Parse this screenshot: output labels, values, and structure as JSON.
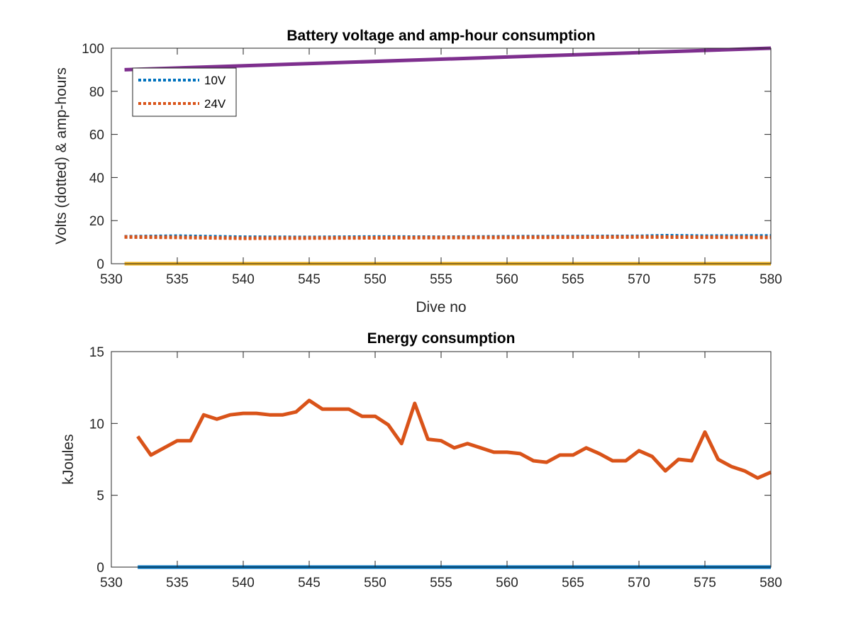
{
  "chart_data": [
    {
      "type": "line",
      "title": "Battery voltage and amp-hour consumption",
      "xlabel": "Dive no",
      "ylabel": "Volts (dotted) & amp-hours",
      "xlim": [
        530,
        580
      ],
      "ylim": [
        0,
        100
      ],
      "xticks": [
        530,
        535,
        540,
        545,
        550,
        555,
        560,
        565,
        570,
        575,
        580
      ],
      "yticks": [
        0,
        20,
        40,
        60,
        80,
        100
      ],
      "grid": false,
      "legend": {
        "placement": "top-left",
        "entries": [
          "10V",
          "24V"
        ]
      },
      "series": [
        {
          "name": "10V",
          "style": "dotted",
          "color": "#0072BD",
          "x": [
            531,
            535,
            540,
            545,
            550,
            555,
            560,
            565,
            570,
            572,
            575,
            580
          ],
          "y": [
            12.5,
            12.8,
            12.3,
            12.2,
            12.4,
            12.3,
            12.5,
            12.6,
            12.7,
            13.0,
            12.8,
            12.9
          ]
        },
        {
          "name": "24V",
          "style": "dotted",
          "color": "#D95319",
          "x": [
            531,
            535,
            540,
            545,
            550,
            555,
            560,
            565,
            570,
            575,
            580
          ],
          "y": [
            12.4,
            12.2,
            11.8,
            11.9,
            12.0,
            12.1,
            12.2,
            12.3,
            12.4,
            12.3,
            12.2
          ]
        },
        {
          "style": "solid",
          "color": "#EDB120",
          "x": [
            531,
            580
          ],
          "y": [
            0,
            0
          ]
        },
        {
          "style": "solid",
          "color": "#7E2F8E",
          "x": [
            531,
            580
          ],
          "y": [
            90,
            100
          ]
        }
      ]
    },
    {
      "type": "line",
      "title": "Energy consumption",
      "xlabel": "",
      "ylabel": "kJoules",
      "xlim": [
        530,
        580
      ],
      "ylim": [
        0,
        15
      ],
      "xticks": [
        530,
        535,
        540,
        545,
        550,
        555,
        560,
        565,
        570,
        575,
        580
      ],
      "yticks": [
        0,
        5,
        10,
        15
      ],
      "grid": false,
      "series": [
        {
          "style": "solid",
          "color": "#D95319",
          "x": [
            532,
            533,
            534,
            535,
            536,
            537,
            538,
            539,
            540,
            541,
            542,
            543,
            544,
            545,
            546,
            547,
            548,
            549,
            550,
            551,
            552,
            553,
            554,
            555,
            556,
            557,
            558,
            559,
            560,
            561,
            562,
            563,
            564,
            565,
            566,
            567,
            568,
            569,
            570,
            571,
            572,
            573,
            574,
            575,
            576,
            577,
            578,
            579,
            580
          ],
          "y": [
            9.1,
            7.8,
            8.3,
            8.8,
            8.8,
            10.6,
            10.3,
            10.6,
            10.7,
            10.7,
            10.6,
            10.6,
            10.8,
            11.6,
            11.0,
            11.0,
            11.0,
            10.5,
            10.5,
            9.9,
            8.6,
            11.4,
            8.9,
            8.8,
            8.3,
            8.6,
            8.3,
            8.0,
            8.0,
            7.9,
            7.4,
            7.3,
            7.8,
            7.8,
            8.3,
            7.9,
            7.4,
            7.4,
            8.1,
            7.7,
            6.7,
            7.5,
            7.4,
            9.4,
            7.5,
            7.0,
            6.7,
            6.2,
            6.6
          ]
        },
        {
          "style": "solid",
          "color": "#0072BD",
          "x": [
            532,
            580
          ],
          "y": [
            0,
            0
          ]
        }
      ]
    }
  ]
}
